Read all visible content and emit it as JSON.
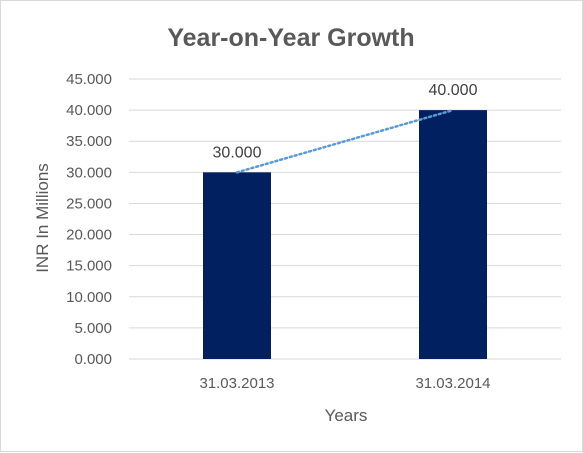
{
  "chart_data": {
    "type": "bar",
    "title": "Year-on-Year Growth",
    "xlabel": "Years",
    "ylabel": "INR In Millions",
    "categories": [
      "31.03.2013",
      "31.03.2014"
    ],
    "values": [
      30.0,
      40.0
    ],
    "data_labels": [
      "30.000",
      "40.000"
    ],
    "ylim": [
      0,
      45
    ],
    "yticks": [
      0,
      5,
      10,
      15,
      20,
      25,
      30,
      35,
      40,
      45
    ],
    "ytick_labels": [
      "0.000",
      "5.000",
      "10.000",
      "15.000",
      "20.000",
      "25.000",
      "30.000",
      "35.000",
      "40.000",
      "45.000"
    ],
    "grid": true,
    "trendline": "linear, dotted",
    "legend": "none",
    "colors": {
      "bar": "#002060",
      "trendline": "#5b9bd5",
      "grid": "#d9d9d9",
      "text": "#595959"
    }
  }
}
